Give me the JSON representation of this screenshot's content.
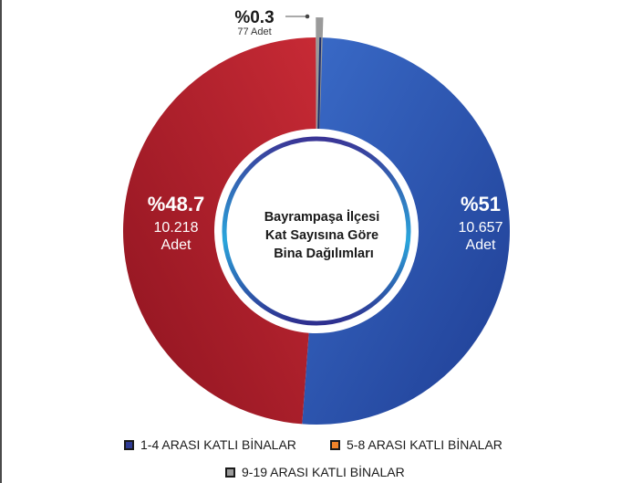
{
  "chart_data": {
    "type": "pie",
    "title": "Bayrampaşa İlçesi Kat Sayısına Göre Bina Dağılımları",
    "title_lines": [
      "Bayrampaşa İlçesi",
      "Kat Sayısına Göre",
      "Bina Dağılımları"
    ],
    "slices": [
      {
        "key": "1-4",
        "legend": "1-4 ARASI KATLI BİNALAR",
        "percent_label": "%51",
        "count_label": "10.657",
        "unit_label": "Adet",
        "count": 10657,
        "color": "#2b52a8"
      },
      {
        "key": "5-8",
        "legend": "5-8 ARASI KATLI BİNALAR",
        "percent_label": "%48.7",
        "count_label": "10.218",
        "unit_label": "Adet",
        "count": 10218,
        "color": "#b8202c"
      },
      {
        "key": "9-19",
        "legend": "9-19 ARASI KATLI BİNALAR",
        "percent_label": "%0.3",
        "count_label": "77 Adet",
        "unit_label": "",
        "count": 77,
        "color": "#9a9a9a"
      }
    ],
    "legend_swatch_colors": {
      "1-4": "#2f3b94",
      "5-8": "#f0832a",
      "9-19": "#9a9a9a"
    },
    "legend_position": "bottom",
    "chart_style": "donut"
  }
}
